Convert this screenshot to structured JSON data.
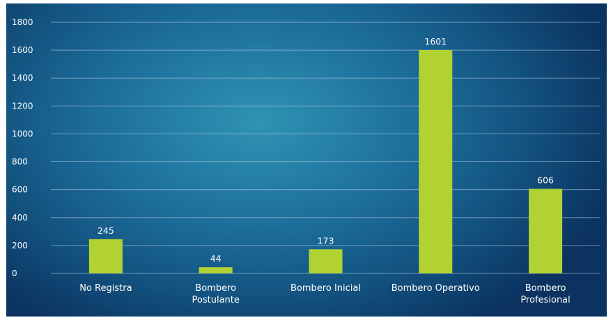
{
  "colors": {
    "bar": "#b2d234",
    "grid": "#bfd4e6",
    "text": "#ffffff"
  },
  "chart_data": {
    "type": "bar",
    "title": "",
    "xlabel": "",
    "ylabel": "",
    "ylim": [
      0,
      1800
    ],
    "yticks": [
      "0",
      "200",
      "400",
      "600",
      "800",
      "1000",
      "1200",
      "1400",
      "1600",
      "1800"
    ],
    "categories": [
      [
        "No Registra"
      ],
      [
        "Bombero",
        "Postulante"
      ],
      [
        "Bombero Inicial"
      ],
      [
        "Bombero Operativo"
      ],
      [
        "Bombero",
        "Profesional"
      ]
    ],
    "values": [
      245,
      44,
      173,
      1601,
      606
    ],
    "data_labels": [
      "245",
      "44",
      "173",
      "1601",
      "606"
    ],
    "grid": true,
    "legend": "none"
  }
}
